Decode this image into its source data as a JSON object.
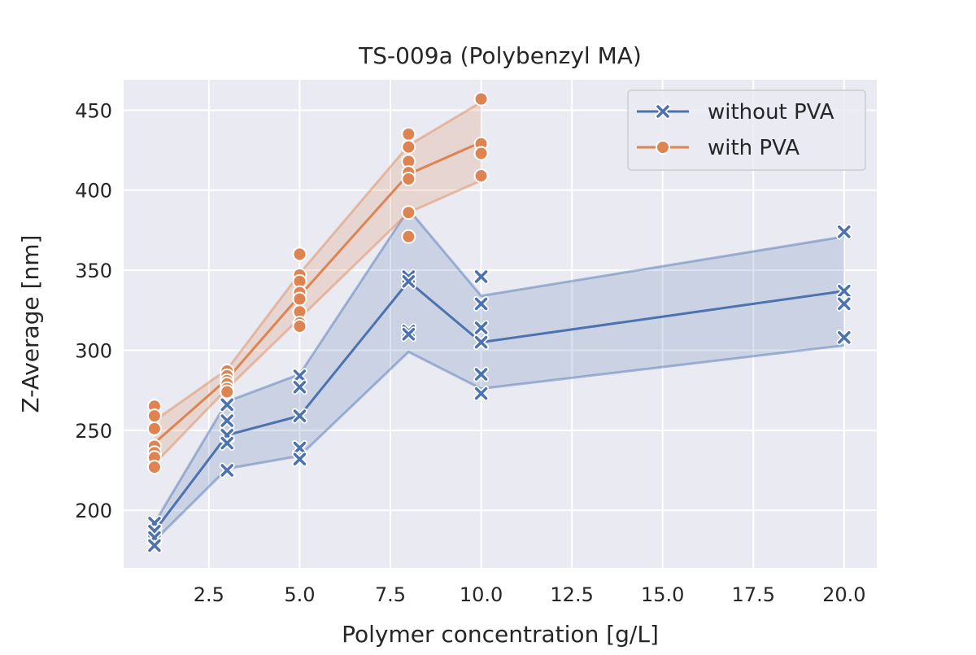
{
  "chart_data": {
    "type": "line",
    "title": "TS-009a (Polybenzyl MA)",
    "xlabel": "Polymer concentration [g/L]",
    "ylabel": "Z-Average [nm]",
    "xlim": [
      0.15,
      20.9
    ],
    "ylim": [
      164,
      469
    ],
    "xticks": [
      2.5,
      5.0,
      7.5,
      10.0,
      12.5,
      15.0,
      17.5,
      20.0
    ],
    "xtick_labels": [
      "2.5",
      "5.0",
      "7.5",
      "10.0",
      "12.5",
      "15.0",
      "17.5",
      "20.0"
    ],
    "yticks": [
      200,
      250,
      300,
      350,
      400,
      450
    ],
    "ytick_labels": [
      "200",
      "250",
      "300",
      "350",
      "400",
      "450"
    ],
    "grid": true,
    "legend_position": "top-right",
    "series": [
      {
        "name": "without PVA",
        "color": "#4c72b0",
        "marker": "x",
        "mean": [
          {
            "x": 1,
            "y": 187
          },
          {
            "x": 3,
            "y": 247
          },
          {
            "x": 5,
            "y": 259
          },
          {
            "x": 8,
            "y": 343
          },
          {
            "x": 10,
            "y": 305
          },
          {
            "x": 20,
            "y": 337
          }
        ],
        "ci_upper": [
          {
            "x": 1,
            "y": 192
          },
          {
            "x": 3,
            "y": 268
          },
          {
            "x": 5,
            "y": 285
          },
          {
            "x": 8,
            "y": 388
          },
          {
            "x": 10,
            "y": 334
          },
          {
            "x": 20,
            "y": 371
          }
        ],
        "ci_lower": [
          {
            "x": 1,
            "y": 181
          },
          {
            "x": 3,
            "y": 226
          },
          {
            "x": 5,
            "y": 234
          },
          {
            "x": 8,
            "y": 299
          },
          {
            "x": 10,
            "y": 276
          },
          {
            "x": 20,
            "y": 303
          }
        ],
        "points": [
          {
            "x": 1,
            "y": 192
          },
          {
            "x": 1,
            "y": 187
          },
          {
            "x": 1,
            "y": 183
          },
          {
            "x": 1,
            "y": 178
          },
          {
            "x": 3,
            "y": 266
          },
          {
            "x": 3,
            "y": 256
          },
          {
            "x": 3,
            "y": 247
          },
          {
            "x": 3,
            "y": 242
          },
          {
            "x": 3,
            "y": 225
          },
          {
            "x": 5,
            "y": 284
          },
          {
            "x": 5,
            "y": 277
          },
          {
            "x": 5,
            "y": 259
          },
          {
            "x": 5,
            "y": 239
          },
          {
            "x": 5,
            "y": 232
          },
          {
            "x": 8,
            "y": 346
          },
          {
            "x": 8,
            "y": 343
          },
          {
            "x": 8,
            "y": 312
          },
          {
            "x": 8,
            "y": 310
          },
          {
            "x": 10,
            "y": 346
          },
          {
            "x": 10,
            "y": 329
          },
          {
            "x": 10,
            "y": 314
          },
          {
            "x": 10,
            "y": 305
          },
          {
            "x": 10,
            "y": 285
          },
          {
            "x": 10,
            "y": 273
          },
          {
            "x": 20,
            "y": 374
          },
          {
            "x": 20,
            "y": 337
          },
          {
            "x": 20,
            "y": 329
          },
          {
            "x": 20,
            "y": 308
          }
        ]
      },
      {
        "name": "with PVA",
        "color": "#dd8452",
        "marker": "o",
        "mean": [
          {
            "x": 1,
            "y": 242
          },
          {
            "x": 3,
            "y": 282
          },
          {
            "x": 5,
            "y": 334
          },
          {
            "x": 8,
            "y": 410
          },
          {
            "x": 10,
            "y": 430
          }
        ],
        "ci_upper": [
          {
            "x": 1,
            "y": 256
          },
          {
            "x": 3,
            "y": 288
          },
          {
            "x": 5,
            "y": 348
          },
          {
            "x": 8,
            "y": 428
          },
          {
            "x": 10,
            "y": 455
          }
        ],
        "ci_lower": [
          {
            "x": 1,
            "y": 229
          },
          {
            "x": 3,
            "y": 276
          },
          {
            "x": 5,
            "y": 320
          },
          {
            "x": 8,
            "y": 386
          },
          {
            "x": 10,
            "y": 406
          }
        ],
        "points": [
          {
            "x": 1,
            "y": 265
          },
          {
            "x": 1,
            "y": 259
          },
          {
            "x": 1,
            "y": 251
          },
          {
            "x": 1,
            "y": 240
          },
          {
            "x": 1,
            "y": 236
          },
          {
            "x": 1,
            "y": 233
          },
          {
            "x": 1,
            "y": 227
          },
          {
            "x": 3,
            "y": 287
          },
          {
            "x": 3,
            "y": 284
          },
          {
            "x": 3,
            "y": 281
          },
          {
            "x": 3,
            "y": 279
          },
          {
            "x": 3,
            "y": 276
          },
          {
            "x": 3,
            "y": 274
          },
          {
            "x": 5,
            "y": 360
          },
          {
            "x": 5,
            "y": 347
          },
          {
            "x": 5,
            "y": 343
          },
          {
            "x": 5,
            "y": 336
          },
          {
            "x": 5,
            "y": 332
          },
          {
            "x": 5,
            "y": 324
          },
          {
            "x": 5,
            "y": 317
          },
          {
            "x": 5,
            "y": 315
          },
          {
            "x": 8,
            "y": 435
          },
          {
            "x": 8,
            "y": 427
          },
          {
            "x": 8,
            "y": 418
          },
          {
            "x": 8,
            "y": 411
          },
          {
            "x": 8,
            "y": 407
          },
          {
            "x": 8,
            "y": 386
          },
          {
            "x": 8,
            "y": 371
          },
          {
            "x": 10,
            "y": 457
          },
          {
            "x": 10,
            "y": 429
          },
          {
            "x": 10,
            "y": 423
          },
          {
            "x": 10,
            "y": 409
          }
        ]
      }
    ]
  }
}
